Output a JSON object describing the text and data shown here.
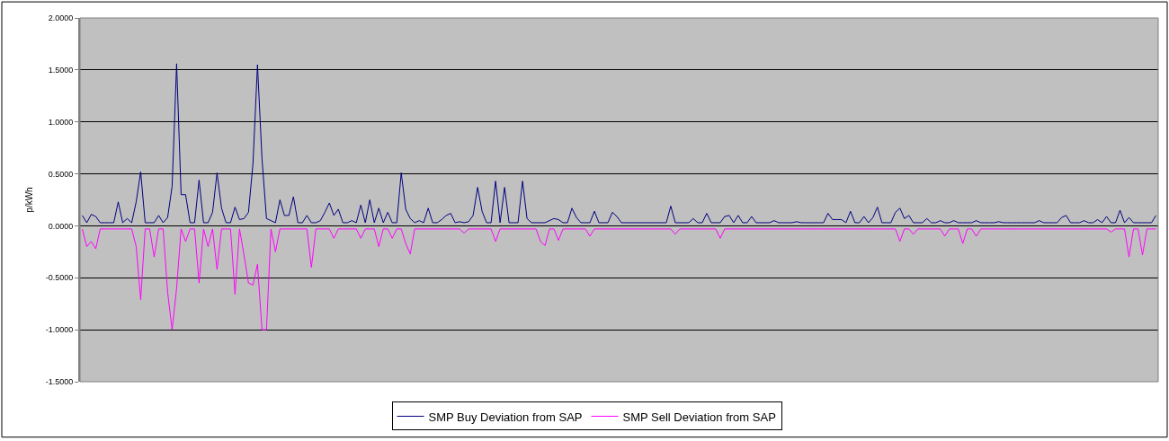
{
  "chart_data": {
    "type": "line",
    "ylabel": "p/kWh",
    "categories": [
      null,
      null,
      null,
      null,
      null,
      null,
      null,
      null,
      null,
      null,
      null,
      null,
      null,
      null,
      null,
      null,
      null,
      null,
      null,
      null,
      null,
      null,
      null,
      null,
      null,
      null,
      null,
      null,
      null,
      null,
      null,
      null,
      null,
      null,
      null,
      null,
      null,
      null,
      null,
      null,
      null,
      null,
      null,
      null,
      null,
      null,
      null,
      null,
      null,
      null,
      null,
      null,
      null,
      null,
      null,
      null,
      null,
      null,
      null,
      null,
      null,
      null,
      null,
      null,
      null,
      null,
      null,
      null,
      null,
      null,
      null,
      null,
      null,
      null,
      null,
      null,
      null,
      null,
      null,
      null,
      null,
      null,
      null,
      null,
      null,
      null,
      null,
      null,
      null,
      null,
      null,
      null,
      null,
      null,
      null,
      null,
      null,
      null,
      null,
      null,
      null,
      null,
      null,
      null,
      null,
      null,
      null,
      null,
      null,
      null,
      null,
      null,
      null,
      null,
      null,
      null,
      null,
      null,
      null,
      null,
      null,
      null,
      null,
      null,
      null,
      null,
      null,
      null,
      null,
      null,
      null,
      null,
      null,
      null,
      null,
      null,
      null,
      null,
      null,
      null,
      null,
      null,
      null,
      null,
      null,
      null,
      null,
      null,
      null,
      null,
      null,
      null,
      null,
      null,
      null,
      null,
      null,
      null,
      null,
      null,
      null,
      null,
      null,
      null,
      null,
      null,
      null,
      null,
      null,
      null,
      null,
      null,
      null,
      null,
      null,
      null,
      null,
      null,
      null,
      null,
      null,
      null,
      null,
      null,
      null,
      null,
      null,
      null,
      null,
      null,
      null,
      null,
      null,
      null,
      null,
      null,
      null,
      null,
      null,
      null,
      null,
      null,
      null,
      null,
      null,
      null,
      null,
      null,
      null,
      null,
      null,
      null,
      null,
      null,
      null,
      null,
      null,
      null,
      null,
      null,
      null,
      null,
      null,
      null,
      null,
      null,
      null,
      null,
      null,
      null,
      null,
      null,
      null,
      null,
      null,
      null,
      null,
      null,
      null,
      null
    ],
    "series": [
      {
        "name": "SMP Buy Deviation from SAP",
        "color": "#000080",
        "values": [
          0.1,
          0.03,
          0.11,
          0.09,
          0.03,
          0.03,
          0.03,
          0.03,
          0.23,
          0.03,
          0.07,
          0.03,
          0.23,
          0.52,
          0.03,
          0.03,
          0.03,
          0.1,
          0.03,
          0.08,
          0.38,
          1.56,
          0.3,
          0.3,
          0.03,
          0.03,
          0.44,
          0.03,
          0.03,
          0.13,
          0.51,
          0.17,
          0.03,
          0.03,
          0.18,
          0.06,
          0.07,
          0.13,
          0.6,
          1.55,
          0.65,
          0.07,
          0.05,
          0.03,
          0.25,
          0.1,
          0.1,
          0.28,
          0.03,
          0.03,
          0.1,
          0.03,
          0.03,
          0.05,
          0.13,
          0.22,
          0.1,
          0.16,
          0.03,
          0.03,
          0.05,
          0.03,
          0.2,
          0.03,
          0.25,
          0.03,
          0.17,
          0.03,
          0.13,
          0.03,
          0.03,
          0.51,
          0.16,
          0.07,
          0.03,
          0.05,
          0.03,
          0.17,
          0.03,
          0.03,
          0.06,
          0.1,
          0.12,
          0.03,
          0.04,
          0.03,
          0.04,
          0.1,
          0.37,
          0.14,
          0.03,
          0.03,
          0.43,
          0.03,
          0.37,
          0.03,
          0.03,
          0.03,
          0.43,
          0.07,
          0.03,
          0.03,
          0.03,
          0.03,
          0.05,
          0.07,
          0.06,
          0.03,
          0.03,
          0.17,
          0.08,
          0.03,
          0.03,
          0.03,
          0.14,
          0.03,
          0.03,
          0.03,
          0.13,
          0.09,
          0.03,
          0.03,
          0.03,
          0.03,
          0.03,
          0.03,
          0.03,
          0.03,
          0.03,
          0.03,
          0.03,
          0.19,
          0.03,
          0.03,
          0.03,
          0.03,
          0.07,
          0.03,
          0.03,
          0.12,
          0.03,
          0.03,
          0.03,
          0.09,
          0.1,
          0.03,
          0.1,
          0.03,
          0.03,
          0.09,
          0.03,
          0.03,
          0.03,
          0.03,
          0.05,
          0.03,
          0.03,
          0.03,
          0.03,
          0.04,
          0.03,
          0.03,
          0.03,
          0.03,
          0.03,
          0.03,
          0.12,
          0.06,
          0.06,
          0.06,
          0.03,
          0.14,
          0.03,
          0.03,
          0.09,
          0.03,
          0.08,
          0.18,
          0.03,
          0.03,
          0.03,
          0.13,
          0.17,
          0.07,
          0.1,
          0.03,
          0.03,
          0.03,
          0.07,
          0.03,
          0.03,
          0.05,
          0.03,
          0.03,
          0.05,
          0.03,
          0.03,
          0.03,
          0.03,
          0.05,
          0.03,
          0.03,
          0.03,
          0.03,
          0.04,
          0.03,
          0.03,
          0.03,
          0.03,
          0.03,
          0.03,
          0.03,
          0.03,
          0.05,
          0.03,
          0.03,
          0.03,
          0.03,
          0.08,
          0.1,
          0.03,
          0.03,
          0.03,
          0.05,
          0.03,
          0.03,
          0.06,
          0.03,
          0.09,
          0.03,
          0.03,
          0.15,
          0.03,
          0.08,
          0.03,
          0.03,
          0.03,
          0.03,
          0.03,
          0.1
        ]
      },
      {
        "name": "SMP Sell Deviation from SAP",
        "color": "#ff00ff",
        "values": [
          -0.03,
          -0.2,
          -0.15,
          -0.22,
          -0.03,
          -0.03,
          -0.03,
          -0.03,
          -0.03,
          -0.03,
          -0.03,
          -0.03,
          -0.2,
          -0.71,
          -0.03,
          -0.03,
          -0.3,
          -0.03,
          -0.03,
          -0.64,
          -1.0,
          -0.6,
          -0.03,
          -0.15,
          -0.03,
          -0.03,
          -0.55,
          -0.03,
          -0.2,
          -0.03,
          -0.42,
          -0.03,
          -0.03,
          -0.03,
          -0.66,
          -0.03,
          -0.28,
          -0.55,
          -0.57,
          -0.37,
          -1.0,
          -1.0,
          -0.03,
          -0.25,
          -0.03,
          -0.03,
          -0.03,
          -0.03,
          -0.03,
          -0.03,
          -0.03,
          -0.4,
          -0.03,
          -0.03,
          -0.03,
          -0.03,
          -0.12,
          -0.03,
          -0.03,
          -0.03,
          -0.03,
          -0.03,
          -0.12,
          -0.03,
          -0.03,
          -0.03,
          -0.2,
          -0.03,
          -0.03,
          -0.12,
          -0.03,
          -0.03,
          -0.17,
          -0.27,
          -0.03,
          -0.03,
          -0.03,
          -0.03,
          -0.03,
          -0.03,
          -0.03,
          -0.03,
          -0.03,
          -0.03,
          -0.03,
          -0.07,
          -0.03,
          -0.03,
          -0.03,
          -0.03,
          -0.03,
          -0.03,
          -0.15,
          -0.03,
          -0.03,
          -0.03,
          -0.03,
          -0.03,
          -0.03,
          -0.03,
          -0.03,
          -0.03,
          -0.15,
          -0.19,
          -0.03,
          -0.03,
          -0.14,
          -0.03,
          -0.03,
          -0.03,
          -0.03,
          -0.03,
          -0.03,
          -0.1,
          -0.03,
          -0.03,
          -0.03,
          -0.03,
          -0.03,
          -0.03,
          -0.03,
          -0.03,
          -0.03,
          -0.03,
          -0.03,
          -0.03,
          -0.03,
          -0.03,
          -0.03,
          -0.03,
          -0.03,
          -0.03,
          -0.08,
          -0.03,
          -0.03,
          -0.03,
          -0.03,
          -0.03,
          -0.03,
          -0.03,
          -0.03,
          -0.03,
          -0.12,
          -0.03,
          -0.03,
          -0.03,
          -0.03,
          -0.03,
          -0.03,
          -0.03,
          -0.03,
          -0.03,
          -0.03,
          -0.03,
          -0.03,
          -0.03,
          -0.03,
          -0.03,
          -0.03,
          -0.03,
          -0.03,
          -0.03,
          -0.03,
          -0.03,
          -0.03,
          -0.03,
          -0.03,
          -0.03,
          -0.03,
          -0.03,
          -0.03,
          -0.03,
          -0.03,
          -0.03,
          -0.03,
          -0.03,
          -0.03,
          -0.03,
          -0.03,
          -0.03,
          -0.03,
          -0.03,
          -0.15,
          -0.03,
          -0.03,
          -0.08,
          -0.03,
          -0.03,
          -0.03,
          -0.03,
          -0.03,
          -0.03,
          -0.1,
          -0.03,
          -0.03,
          -0.03,
          -0.17,
          -0.03,
          -0.03,
          -0.1,
          -0.03,
          -0.03,
          -0.03,
          -0.03,
          -0.03,
          -0.03,
          -0.03,
          -0.03,
          -0.03,
          -0.03,
          -0.03,
          -0.03,
          -0.03,
          -0.03,
          -0.03,
          -0.03,
          -0.03,
          -0.03,
          -0.03,
          -0.03,
          -0.03,
          -0.03,
          -0.03,
          -0.03,
          -0.03,
          -0.03,
          -0.03,
          -0.03,
          -0.03,
          -0.06,
          -0.03,
          -0.03,
          -0.03,
          -0.3,
          -0.03,
          -0.03,
          -0.28,
          -0.03,
          -0.03,
          -0.03
        ]
      }
    ],
    "ylim": [
      -1.5,
      2.0
    ],
    "yticks": [
      {
        "value": 2.0,
        "label": "2.0000"
      },
      {
        "value": 1.5,
        "label": "1.5000"
      },
      {
        "value": 1.0,
        "label": "1.0000"
      },
      {
        "value": 0.5,
        "label": "0.5000"
      },
      {
        "value": 0,
        "label": "0.0000"
      },
      {
        "value": -0.5,
        "label": "-0.5000"
      },
      {
        "value": -1.0,
        "label": "-1.0000"
      },
      {
        "value": -1.5,
        "label": "-1.5000"
      }
    ],
    "grid": "y",
    "legend": "bottom",
    "tick_labels": "y"
  }
}
